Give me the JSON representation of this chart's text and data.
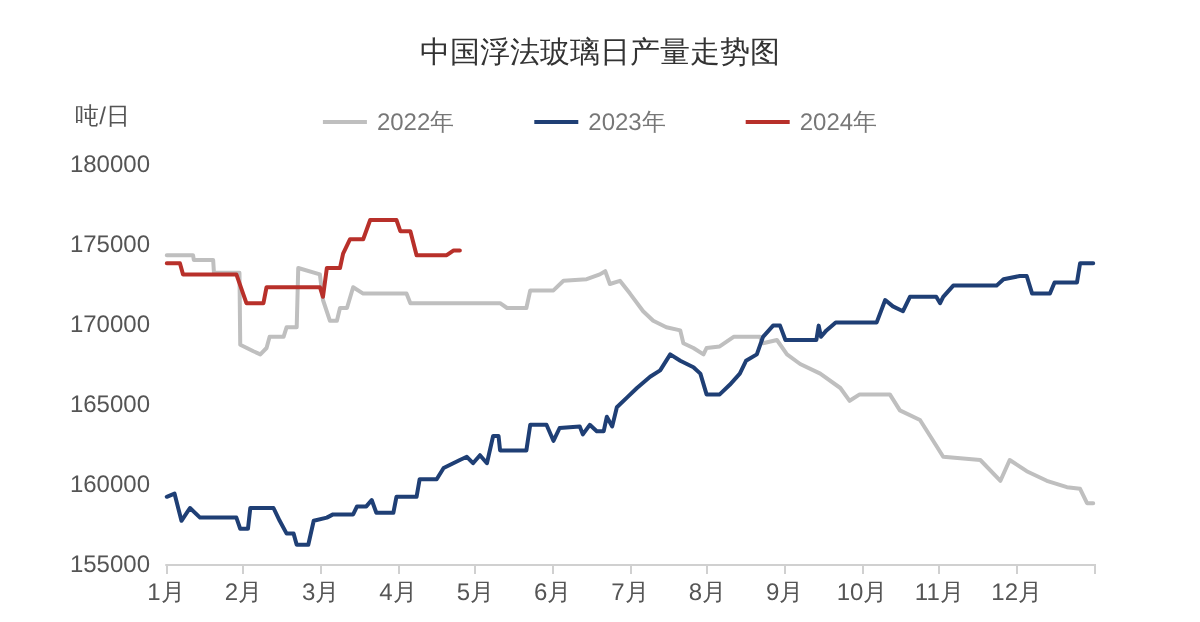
{
  "chart_data": {
    "type": "line",
    "title": "中国浮法玻璃日产量走势图",
    "ylabel": "吨/日",
    "legend": "top",
    "grid": false,
    "marker": "none",
    "line_style": "solid",
    "xlim": [
      1,
      13
    ],
    "xticks": [
      {
        "value": 1,
        "label": "1月"
      },
      {
        "value": 2,
        "label": "2月"
      },
      {
        "value": 3,
        "label": "3月"
      },
      {
        "value": 4,
        "label": "4月"
      },
      {
        "value": 5,
        "label": "5月"
      },
      {
        "value": 6,
        "label": "6月"
      },
      {
        "value": 7,
        "label": "7月"
      },
      {
        "value": 8,
        "label": "8月"
      },
      {
        "value": 9,
        "label": "9月"
      },
      {
        "value": 10,
        "label": "10月"
      },
      {
        "value": 11,
        "label": "11月"
      },
      {
        "value": 12,
        "label": "12月"
      },
      {
        "value": 13,
        "label": null
      }
    ],
    "ylim": [
      155000,
      180000
    ],
    "yticks": [
      155000,
      160000,
      165000,
      170000,
      175000,
      180000
    ],
    "series": [
      {
        "name": "2022年",
        "color": "#bfbfbf",
        "x": [
          1.01,
          1.35,
          1.36,
          1.61,
          1.62,
          1.95,
          1.96,
          2.13,
          2.22,
          2.3,
          2.34,
          2.52,
          2.56,
          2.69,
          2.71,
          2.99,
          3.03,
          3.12,
          3.21,
          3.25,
          3.34,
          3.42,
          3.55,
          4.11,
          4.16,
          5.32,
          5.41,
          5.66,
          5.71,
          6.01,
          6.14,
          6.44,
          6.61,
          6.68,
          6.74,
          6.87,
          7.0,
          7.17,
          7.3,
          7.47,
          7.65,
          7.69,
          7.82,
          7.95,
          7.99,
          8.16,
          8.34,
          8.68,
          8.72,
          8.9,
          9.03,
          9.2,
          9.46,
          9.72,
          9.84,
          9.97,
          10.36,
          10.49,
          10.75,
          10.92,
          11.05,
          11.53,
          11.79,
          11.91,
          12.13,
          12.39,
          12.65,
          12.82,
          12.91,
          12.99
        ],
        "values": [
          174300,
          174300,
          174000,
          174000,
          173200,
          173200,
          168700,
          168300,
          168100,
          168500,
          169200,
          169200,
          169800,
          169800,
          173500,
          173100,
          171500,
          170200,
          170200,
          171000,
          171000,
          172300,
          171900,
          171900,
          171300,
          171300,
          171000,
          171000,
          172100,
          172100,
          172700,
          172800,
          173100,
          173300,
          172500,
          172700,
          171900,
          170800,
          170200,
          169800,
          169600,
          168800,
          168500,
          168100,
          168500,
          168600,
          169200,
          169200,
          168800,
          169000,
          168100,
          167500,
          166900,
          166000,
          165200,
          165600,
          165600,
          164600,
          164000,
          162700,
          161700,
          161500,
          160200,
          161500,
          160800,
          160200,
          159800,
          159700,
          158800,
          158800
        ]
      },
      {
        "name": "2023年",
        "color": "#1f3f75",
        "x": [
          1.01,
          1.11,
          1.2,
          1.31,
          1.44,
          1.91,
          1.96,
          2.06,
          2.09,
          2.39,
          2.47,
          2.56,
          2.65,
          2.69,
          2.84,
          2.91,
          3.08,
          3.16,
          3.42,
          3.47,
          3.59,
          3.66,
          3.72,
          3.94,
          3.98,
          4.24,
          4.28,
          4.5,
          4.59,
          4.8,
          4.89,
          4.97,
          5.06,
          5.15,
          5.23,
          5.3,
          5.32,
          5.66,
          5.71,
          5.92,
          6.01,
          6.09,
          6.35,
          6.39,
          6.48,
          6.57,
          6.66,
          6.7,
          6.77,
          6.83,
          6.96,
          7.09,
          7.26,
          7.39,
          7.52,
          7.65,
          7.82,
          7.91,
          7.99,
          8.16,
          8.29,
          8.42,
          8.5,
          8.64,
          8.72,
          8.85,
          8.94,
          9.01,
          9.41,
          9.44,
          9.47,
          9.54,
          9.66,
          10.19,
          10.3,
          10.4,
          10.53,
          10.62,
          10.96,
          11.01,
          11.05,
          11.18,
          11.74,
          11.83,
          12.04,
          12.13,
          12.2,
          12.43,
          12.49,
          12.78,
          12.82,
          12.99
        ],
        "values": [
          159200,
          159400,
          157700,
          158500,
          157900,
          157900,
          157200,
          157200,
          158500,
          158500,
          157700,
          156900,
          156900,
          156200,
          156200,
          157700,
          157900,
          158100,
          158100,
          158600,
          158600,
          159000,
          158200,
          158200,
          159200,
          159200,
          160300,
          160300,
          161000,
          161500,
          161700,
          161300,
          161800,
          161300,
          163000,
          163000,
          162100,
          162100,
          163700,
          163700,
          162700,
          163500,
          163600,
          163100,
          163700,
          163300,
          163300,
          164200,
          163600,
          164800,
          165400,
          166000,
          166700,
          167100,
          168100,
          167700,
          167300,
          166900,
          165600,
          165600,
          166200,
          166900,
          167700,
          168100,
          169200,
          169900,
          169900,
          169000,
          169000,
          169900,
          169200,
          169600,
          170100,
          170100,
          171500,
          171100,
          170800,
          171700,
          171700,
          171300,
          171700,
          172400,
          172400,
          172800,
          173000,
          173000,
          171900,
          171900,
          172600,
          172600,
          173800,
          173800
        ]
      },
      {
        "name": "2024年",
        "color": "#b8302a",
        "x": [
          1.01,
          1.18,
          1.22,
          1.91,
          2.04,
          2.26,
          2.3,
          2.99,
          3.03,
          3.08,
          3.25,
          3.29,
          3.38,
          3.55,
          3.64,
          3.98,
          4.03,
          4.16,
          4.24,
          4.63,
          4.72,
          4.8
        ],
        "values": [
          173800,
          173800,
          173100,
          173100,
          171300,
          171300,
          172300,
          172300,
          171700,
          173500,
          173500,
          174400,
          175300,
          175300,
          176500,
          176500,
          175800,
          175800,
          174300,
          174300,
          174600,
          174600
        ]
      }
    ]
  }
}
